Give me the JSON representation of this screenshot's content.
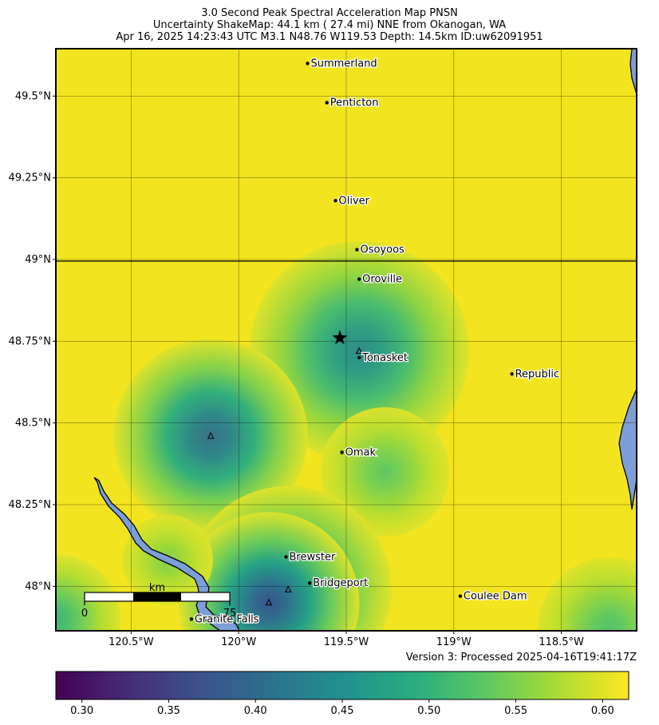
{
  "title": {
    "line1": "3.0 Second Peak Spectral Acceleration Map PNSN",
    "line2": "Uncertainty ShakeMap: 44.1 km (  27.4 mi) NNE from Okanogan, WA",
    "line3": "Apr 16, 2025 14:23:43 UTC M3.1 N48.76 W119.53 Depth: 14.5km ID:uw62091951"
  },
  "map": {
    "lon_range": [
      -120.85,
      -118.15
    ],
    "lat_range": [
      47.864,
      49.645
    ],
    "lat_ticks": [
      {
        "value": 49.5,
        "label": "49.5°N"
      },
      {
        "value": 49.25,
        "label": "49.25°N"
      },
      {
        "value": 49.0,
        "label": "49°N"
      },
      {
        "value": 48.75,
        "label": "48.75°N"
      },
      {
        "value": 48.5,
        "label": "48.5°N"
      },
      {
        "value": 48.25,
        "label": "48.25°N"
      },
      {
        "value": 48.0,
        "label": "48°N"
      }
    ],
    "lon_ticks": [
      {
        "value": -120.5,
        "label": "120.5°W"
      },
      {
        "value": -120.0,
        "label": "120°W"
      },
      {
        "value": -119.5,
        "label": "119.5°W"
      },
      {
        "value": -119.0,
        "label": "119°W"
      },
      {
        "value": -118.5,
        "label": "118.5°W"
      }
    ],
    "epicenter": {
      "lon": -119.53,
      "lat": 48.76
    },
    "cities": [
      {
        "name": "Summerland",
        "lon": -119.68,
        "lat": 49.6
      },
      {
        "name": "Penticton",
        "lon": -119.59,
        "lat": 49.48
      },
      {
        "name": "Oliver",
        "lon": -119.55,
        "lat": 49.18
      },
      {
        "name": "Osoyoos",
        "lon": -119.45,
        "lat": 49.03
      },
      {
        "name": "Oroville",
        "lon": -119.44,
        "lat": 48.94
      },
      {
        "name": "Tonasket",
        "lon": -119.44,
        "lat": 48.7
      },
      {
        "name": "Republic",
        "lon": -118.73,
        "lat": 48.65
      },
      {
        "name": "Omak",
        "lon": -119.52,
        "lat": 48.41
      },
      {
        "name": "Brewster",
        "lon": -119.78,
        "lat": 48.09
      },
      {
        "name": "Bridgeport",
        "lon": -119.67,
        "lat": 48.01
      },
      {
        "name": "Coulee Dam",
        "lon": -118.97,
        "lat": 47.97
      },
      {
        "name": "Granite Falls",
        "lon": -120.22,
        "lat": 47.9
      }
    ],
    "stations": [
      {
        "lon": -119.44,
        "lat": 48.72
      },
      {
        "lon": -120.13,
        "lat": 48.46
      },
      {
        "lon": -119.77,
        "lat": 47.99
      },
      {
        "lon": -119.86,
        "lat": 47.95
      }
    ],
    "uncertainty_lows": [
      {
        "lon": -119.44,
        "lat": 48.72,
        "value": 0.44,
        "radius_km": 17
      },
      {
        "lon": -120.13,
        "lat": 48.46,
        "value": 0.4,
        "radius_km": 15
      },
      {
        "lon": -119.32,
        "lat": 48.35,
        "value": 0.53,
        "radius_km": 10
      },
      {
        "lon": -119.77,
        "lat": 47.99,
        "value": 0.42,
        "radius_km": 16
      },
      {
        "lon": -119.86,
        "lat": 47.95,
        "value": 0.37,
        "radius_km": 14
      },
      {
        "lon": -120.33,
        "lat": 48.08,
        "value": 0.55,
        "radius_km": 7
      },
      {
        "lon": -118.28,
        "lat": 47.87,
        "value": 0.52,
        "radius_km": 11
      },
      {
        "lon": -120.85,
        "lat": 47.9,
        "value": 0.5,
        "radius_km": 10
      }
    ],
    "scale_bar": {
      "unit": "km",
      "min_label": "0",
      "max_label": "75"
    },
    "colors": {
      "water": "#7b9fd6",
      "max_value_color": "#f2e51f"
    }
  },
  "colorbar": {
    "colormap": "viridis",
    "range": [
      0.285,
      0.615
    ],
    "ticks": [
      {
        "value": 0.3,
        "label": "0.30"
      },
      {
        "value": 0.35,
        "label": "0.35"
      },
      {
        "value": 0.4,
        "label": "0.40"
      },
      {
        "value": 0.45,
        "label": "0.45"
      },
      {
        "value": 0.5,
        "label": "0.50"
      },
      {
        "value": 0.55,
        "label": "0.55"
      },
      {
        "value": 0.6,
        "label": "0.60"
      }
    ]
  },
  "version": "Version 3: Processed 2025-04-16T19:41:17Z"
}
